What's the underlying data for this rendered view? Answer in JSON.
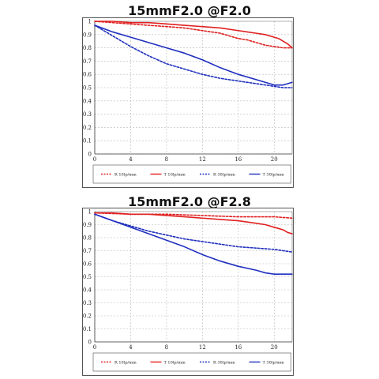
{
  "chart_data": [
    {
      "type": "line",
      "title": "15mmF2.0 @F2.0",
      "xlabel": "",
      "ylabel": "",
      "xlim": [
        0,
        22
      ],
      "ylim": [
        0,
        1
      ],
      "x_ticks": [
        "0",
        "4",
        "8",
        "12",
        "16",
        "20"
      ],
      "y_ticks": [
        "0",
        "0.1",
        "0.2",
        "0.3",
        "0.4",
        "0.5",
        "0.6",
        "0.7",
        "0.8",
        "0.9",
        "1"
      ],
      "grid": true,
      "legend_position": "bottom",
      "series": [
        {
          "name": "R 10lp/mm",
          "color": "#e02020",
          "dash": true,
          "x": [
            0,
            2,
            4,
            6,
            8,
            10,
            12,
            14,
            15,
            16,
            17,
            18,
            19,
            20,
            21,
            22
          ],
          "y": [
            1.0,
            0.99,
            0.98,
            0.97,
            0.96,
            0.95,
            0.93,
            0.91,
            0.89,
            0.87,
            0.86,
            0.84,
            0.82,
            0.81,
            0.8,
            0.8
          ]
        },
        {
          "name": "T 10lp/mm",
          "color": "#e02020",
          "dash": false,
          "x": [
            0,
            2,
            4,
            6,
            8,
            10,
            12,
            14,
            16,
            17,
            18,
            19,
            20,
            20.5,
            21,
            21.5,
            22
          ],
          "y": [
            1.0,
            1.0,
            0.99,
            0.99,
            0.98,
            0.97,
            0.96,
            0.95,
            0.93,
            0.92,
            0.91,
            0.9,
            0.88,
            0.87,
            0.85,
            0.83,
            0.8
          ]
        },
        {
          "name": "R 30lp/mm",
          "color": "#1f2fbf",
          "dash": true,
          "x": [
            0,
            2,
            4,
            6,
            8,
            10,
            12,
            14,
            16,
            18,
            20,
            21,
            22
          ],
          "y": [
            0.97,
            0.89,
            0.81,
            0.74,
            0.68,
            0.64,
            0.6,
            0.57,
            0.55,
            0.53,
            0.51,
            0.5,
            0.5
          ]
        },
        {
          "name": "T 30lp/mm",
          "color": "#1f2fbf",
          "dash": false,
          "x": [
            0,
            2,
            4,
            6,
            8,
            10,
            12,
            14,
            16,
            18,
            19,
            20,
            20.5,
            21,
            21.5,
            22
          ],
          "y": [
            0.97,
            0.92,
            0.88,
            0.84,
            0.8,
            0.76,
            0.71,
            0.65,
            0.6,
            0.56,
            0.54,
            0.52,
            0.52,
            0.52,
            0.53,
            0.54
          ]
        }
      ]
    },
    {
      "type": "line",
      "title": "15mmF2.0 @F2.8",
      "xlabel": "",
      "ylabel": "",
      "xlim": [
        0,
        22
      ],
      "ylim": [
        0,
        1
      ],
      "x_ticks": [
        "0",
        "4",
        "8",
        "12",
        "16",
        "20"
      ],
      "y_ticks": [
        "0",
        "0.1",
        "0.2",
        "0.3",
        "0.4",
        "0.5",
        "0.6",
        "0.7",
        "0.8",
        "0.9",
        "1"
      ],
      "grid": true,
      "legend_position": "bottom",
      "series": [
        {
          "name": "R 10lp/mm",
          "color": "#e02020",
          "dash": true,
          "x": [
            0,
            4,
            8,
            12,
            16,
            20,
            22
          ],
          "y": [
            0.99,
            0.98,
            0.98,
            0.97,
            0.96,
            0.96,
            0.95
          ]
        },
        {
          "name": "T 10lp/mm",
          "color": "#e02020",
          "dash": false,
          "x": [
            0,
            2,
            4,
            6,
            8,
            10,
            12,
            14,
            16,
            17,
            18,
            19,
            20,
            20.5,
            21,
            21.5,
            22
          ],
          "y": [
            0.99,
            0.99,
            0.98,
            0.98,
            0.97,
            0.96,
            0.95,
            0.94,
            0.93,
            0.92,
            0.91,
            0.9,
            0.88,
            0.87,
            0.86,
            0.84,
            0.83
          ]
        },
        {
          "name": "R 30lp/mm",
          "color": "#1f2fbf",
          "dash": true,
          "x": [
            0,
            2,
            4,
            6,
            8,
            10,
            12,
            14,
            16,
            18,
            20,
            22
          ],
          "y": [
            0.98,
            0.93,
            0.89,
            0.85,
            0.82,
            0.79,
            0.77,
            0.75,
            0.73,
            0.72,
            0.71,
            0.69
          ]
        },
        {
          "name": "T 30lp/mm",
          "color": "#1f2fbf",
          "dash": false,
          "x": [
            0,
            2,
            4,
            6,
            8,
            10,
            12,
            14,
            16,
            18,
            19,
            20,
            21,
            22
          ],
          "y": [
            0.98,
            0.93,
            0.88,
            0.83,
            0.78,
            0.73,
            0.67,
            0.62,
            0.58,
            0.55,
            0.53,
            0.52,
            0.52,
            0.52
          ]
        }
      ]
    }
  ]
}
